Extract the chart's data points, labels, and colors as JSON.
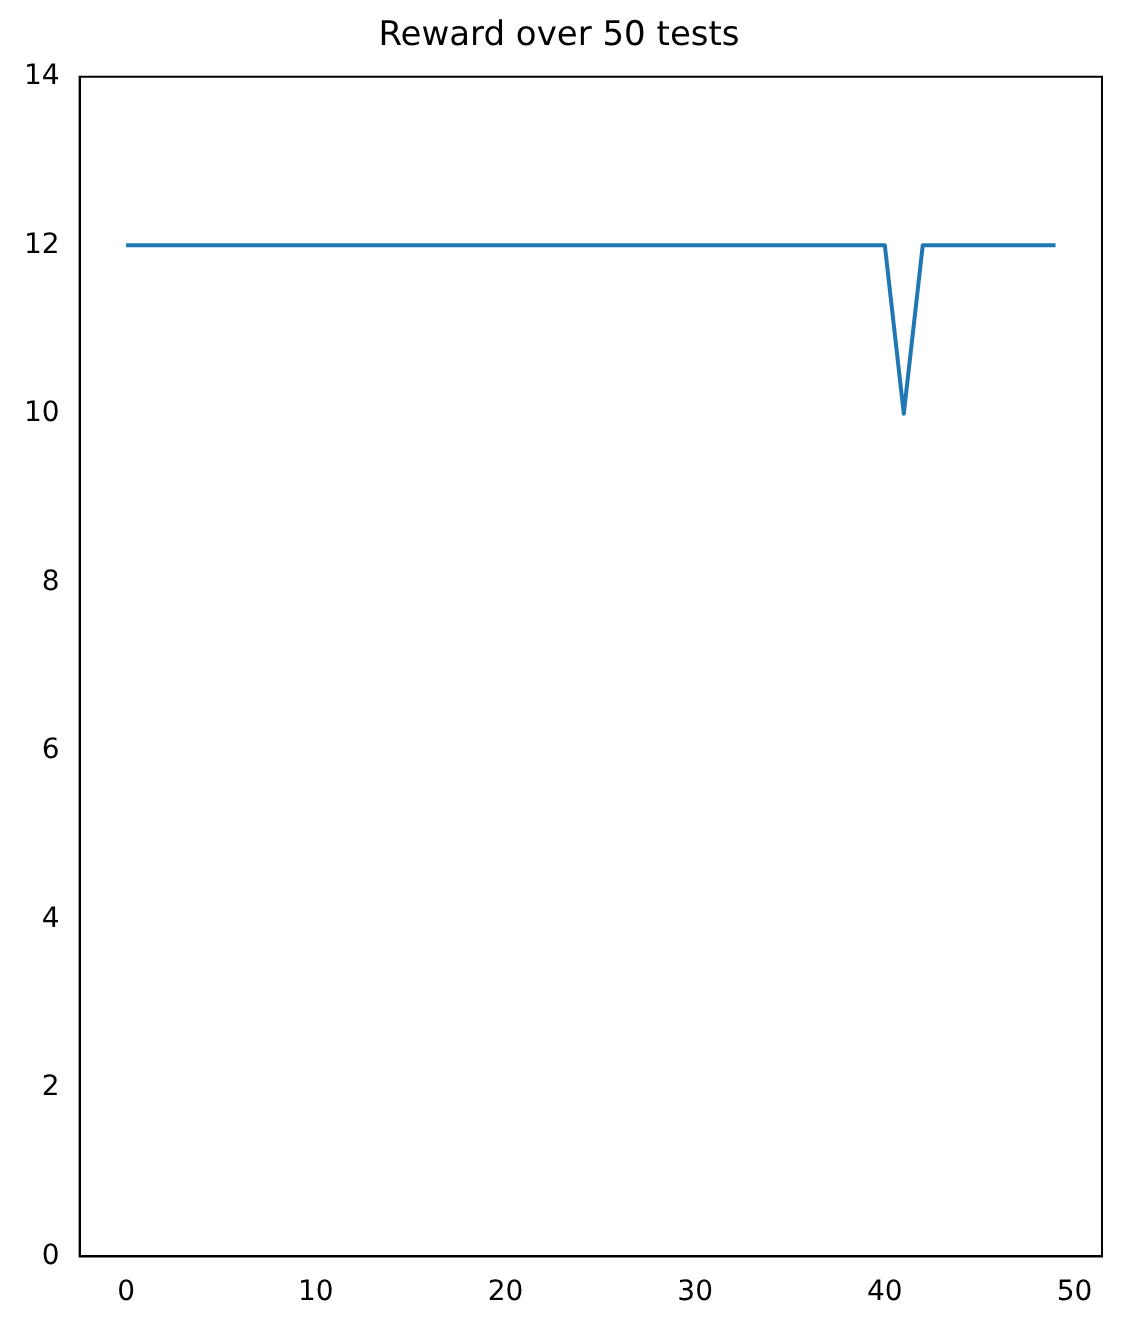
{
  "chart_data": {
    "type": "line",
    "title": "Reward over 50 tests",
    "x": [
      0,
      1,
      2,
      3,
      4,
      5,
      6,
      7,
      8,
      9,
      10,
      11,
      12,
      13,
      14,
      15,
      16,
      17,
      18,
      19,
      20,
      21,
      22,
      23,
      24,
      25,
      26,
      27,
      28,
      29,
      30,
      31,
      32,
      33,
      34,
      35,
      36,
      37,
      38,
      39,
      40,
      41,
      42,
      43,
      44,
      45,
      46,
      47,
      48,
      49
    ],
    "series": [
      {
        "color": "#1f77b4",
        "values": [
          12,
          12,
          12,
          12,
          12,
          12,
          12,
          12,
          12,
          12,
          12,
          12,
          12,
          12,
          12,
          12,
          12,
          12,
          12,
          12,
          12,
          12,
          12,
          12,
          12,
          12,
          12,
          12,
          12,
          12,
          12,
          12,
          12,
          12,
          12,
          12,
          12,
          12,
          12,
          12,
          12,
          10,
          12,
          12,
          12,
          12,
          12,
          12,
          12,
          12
        ]
      }
    ],
    "xlim": [
      -2.45,
      51.45
    ],
    "xticks": [
      0,
      10,
      20,
      30,
      40,
      50
    ],
    "ylim": [
      0,
      14
    ],
    "yticks": [
      0,
      2,
      4,
      6,
      8,
      10,
      12,
      14
    ],
    "grid": false,
    "legend": false
  }
}
